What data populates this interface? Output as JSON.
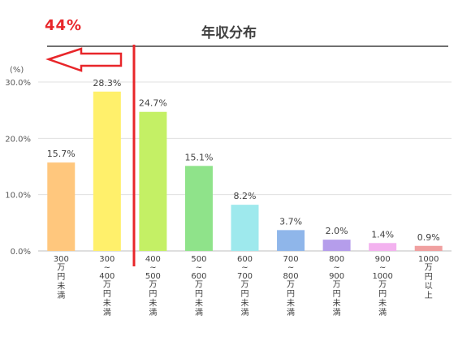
{
  "annotation_pct": "44%",
  "chart_data": {
    "type": "bar",
    "title": "年収分布",
    "ylabel": "(%)",
    "ylim": [
      0,
      30
    ],
    "yticks": [
      "0.0%",
      "10.0%",
      "20.0%",
      "30.0%"
    ],
    "categories": [
      [
        "300",
        "万",
        "円",
        "未",
        "満"
      ],
      [
        "300",
        "~",
        "400",
        "万",
        "円",
        "未",
        "満"
      ],
      [
        "400",
        "~",
        "500",
        "万",
        "円",
        "未",
        "満"
      ],
      [
        "500",
        "~",
        "600",
        "万",
        "円",
        "未",
        "満"
      ],
      [
        "600",
        "~",
        "700",
        "万",
        "円",
        "未",
        "満"
      ],
      [
        "700",
        "~",
        "800",
        "万",
        "円",
        "未",
        "満"
      ],
      [
        "800",
        "~",
        "900",
        "万",
        "円",
        "未",
        "満"
      ],
      [
        "900",
        "~",
        "1000",
        "万",
        "円",
        "未",
        "満"
      ],
      [
        "1000",
        "万",
        "円",
        "以",
        "上"
      ]
    ],
    "values": [
      15.7,
      28.3,
      24.7,
      15.1,
      8.2,
      3.7,
      2.0,
      1.4,
      0.9
    ],
    "value_labels": [
      "15.7%",
      "28.3%",
      "24.7%",
      "15.1%",
      "8.2%",
      "3.7%",
      "2.0%",
      "1.4%",
      "0.9%"
    ],
    "colors": [
      "#ffc77d",
      "#fff06b",
      "#c4f065",
      "#8fe38a",
      "#9ee9ed",
      "#8fb6ea",
      "#b59deb",
      "#f3b2ef",
      "#f0a0a0"
    ],
    "grid": true,
    "legend": "none"
  },
  "colors": {
    "annotation": "#e8262a"
  }
}
